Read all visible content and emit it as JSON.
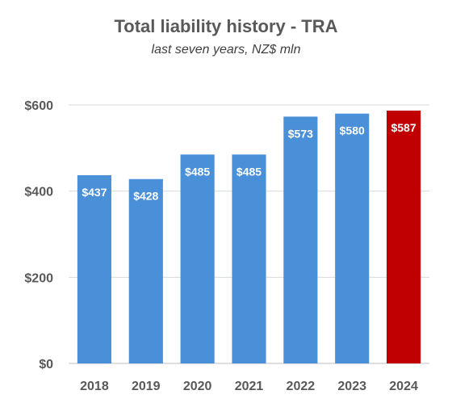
{
  "chart_data": {
    "type": "bar",
    "title": "Total liability history - TRA",
    "subtitle": "last seven years, NZ$ mln",
    "categories": [
      "2018",
      "2019",
      "2020",
      "2021",
      "2022",
      "2023",
      "2024"
    ],
    "values": [
      437,
      428,
      485,
      485,
      573,
      580,
      587
    ],
    "data_labels": [
      "$437",
      "$428",
      "$485",
      "$485",
      "$573",
      "$580",
      "$587"
    ],
    "bar_colors": [
      "#4a90d9",
      "#4a90d9",
      "#4a90d9",
      "#4a90d9",
      "#4a90d9",
      "#4a90d9",
      "#c00000"
    ],
    "ylim": [
      0,
      600
    ],
    "yticks": [
      0,
      200,
      400,
      600
    ],
    "ytick_labels": [
      "$0",
      "$200",
      "$400",
      "$600"
    ],
    "xlabel": "",
    "ylabel": "",
    "grid": true,
    "legend": "none"
  }
}
